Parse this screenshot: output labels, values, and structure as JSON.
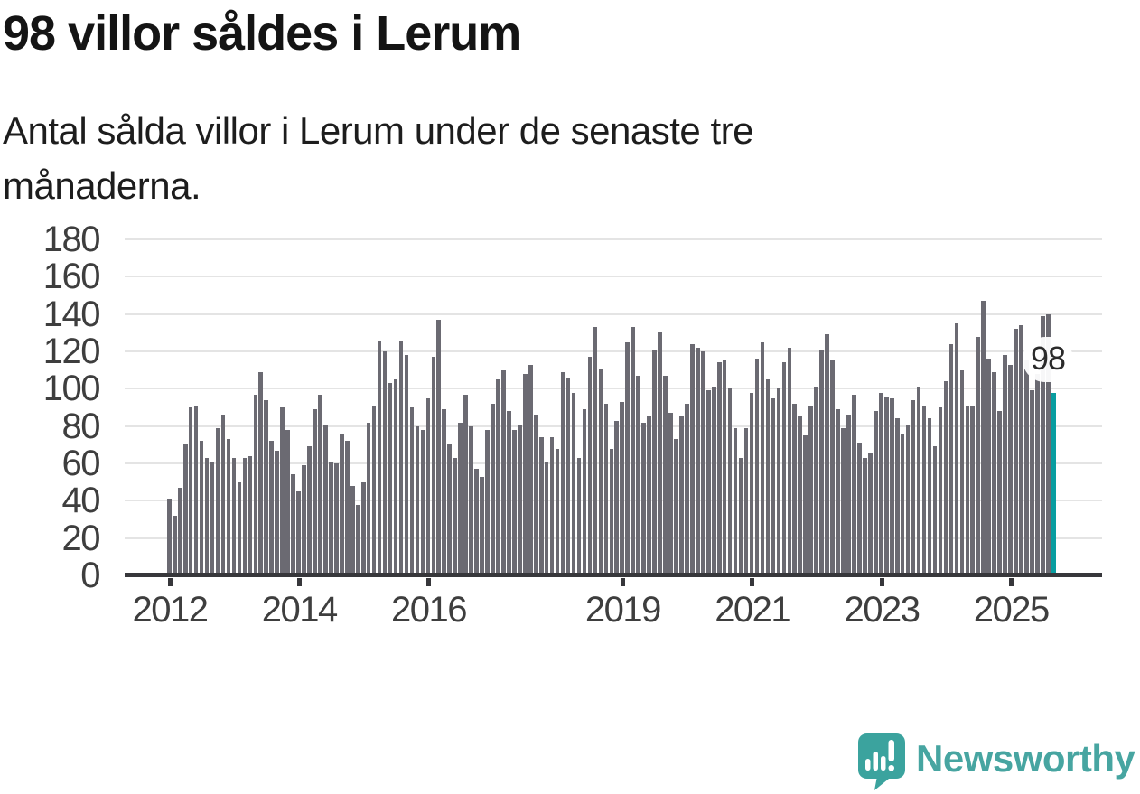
{
  "header": {
    "title": "98 villor såldes i Lerum",
    "subtitle": "Antal sålda villor i Lerum under de senaste tre månaderna."
  },
  "chart_data": {
    "type": "bar",
    "description": "Antal sålda villor per månad i Lerum",
    "x_start": "2012-01",
    "x_frequency": "monthly",
    "values": [
      41,
      32,
      47,
      70,
      90,
      91,
      72,
      63,
      61,
      79,
      86,
      73,
      63,
      50,
      63,
      64,
      97,
      109,
      94,
      72,
      67,
      90,
      78,
      54,
      45,
      59,
      69,
      89,
      97,
      81,
      61,
      60,
      76,
      72,
      48,
      38,
      50,
      82,
      91,
      126,
      120,
      103,
      105,
      126,
      118,
      90,
      80,
      78,
      95,
      117,
      137,
      89,
      70,
      63,
      82,
      97,
      80,
      57,
      53,
      78,
      92,
      105,
      110,
      88,
      78,
      81,
      108,
      113,
      86,
      74,
      61,
      74,
      68,
      109,
      106,
      98,
      63,
      89,
      117,
      133,
      111,
      92,
      68,
      83,
      93,
      125,
      133,
      107,
      82,
      85,
      121,
      130,
      107,
      87,
      73,
      85,
      92,
      124,
      122,
      120,
      99,
      101,
      114,
      115,
      100,
      79,
      63,
      79,
      98,
      116,
      125,
      105,
      95,
      100,
      114,
      122,
      92,
      85,
      75,
      91,
      101,
      121,
      129,
      115,
      89,
      79,
      86,
      97,
      71,
      63,
      66,
      88,
      98,
      96,
      95,
      84,
      76,
      81,
      94,
      101,
      91,
      84,
      69,
      90,
      104,
      124,
      135,
      110,
      91,
      91,
      128,
      147,
      116,
      109,
      88,
      118,
      113,
      132,
      134,
      115,
      99,
      108,
      139,
      140,
      98
    ],
    "highlight_index": 164,
    "annotation": {
      "text": "98"
    },
    "ylim": [
      0,
      180
    ],
    "yticks": [
      0,
      20,
      40,
      60,
      80,
      100,
      120,
      140,
      160,
      180
    ],
    "xticks": [
      {
        "index": 0,
        "label": "2012"
      },
      {
        "index": 24,
        "label": "2014"
      },
      {
        "index": 48,
        "label": "2016"
      },
      {
        "index": 84,
        "label": "2019"
      },
      {
        "index": 108,
        "label": "2021"
      },
      {
        "index": 132,
        "label": "2023"
      },
      {
        "index": 156,
        "label": "2025"
      }
    ],
    "grid": true,
    "colors": {
      "bar": "#6b6a72",
      "highlight": "#089da0",
      "grid": "#e4e4e4",
      "axis": "#37373b",
      "labels": "#3e3e3e"
    }
  },
  "footer": {
    "brand": "Newsworthy",
    "logo_icon": "newsworthy-speech-bubble-chart-icon",
    "logo_color": "#3ba39e",
    "text_color": "#47a5a1"
  }
}
